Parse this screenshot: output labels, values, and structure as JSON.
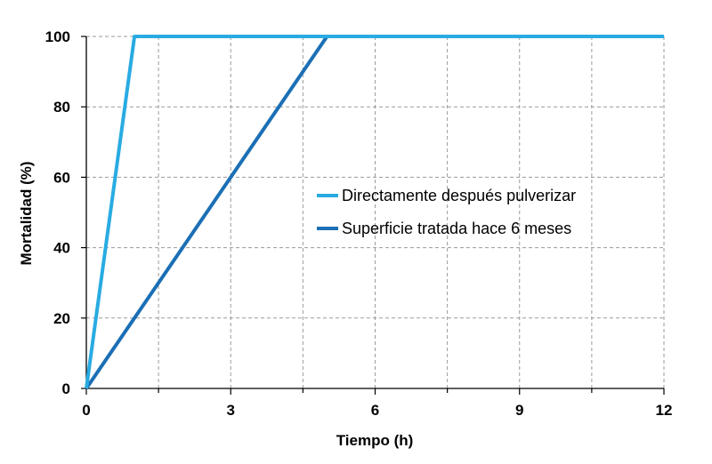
{
  "chart_data": {
    "type": "line",
    "xlabel": "Tiempo (h)",
    "ylabel": "Mortalidad (%)",
    "xlim": [
      0,
      12
    ],
    "ylim": [
      0,
      100
    ],
    "x_ticks": [
      0,
      3,
      6,
      9,
      12
    ],
    "y_ticks": [
      0,
      20,
      40,
      60,
      80,
      100
    ],
    "grid": true,
    "legend_position": "center-right",
    "series": [
      {
        "name": "Directamente después pulverizar",
        "color": "#29ABE2",
        "points": [
          [
            0,
            0
          ],
          [
            1,
            100
          ],
          [
            12,
            100
          ]
        ]
      },
      {
        "name": "Superficie tratada hace 6 meses",
        "color": "#1B6FB5",
        "points": [
          [
            0,
            0
          ],
          [
            5,
            100
          ],
          [
            12,
            100
          ]
        ]
      }
    ]
  }
}
